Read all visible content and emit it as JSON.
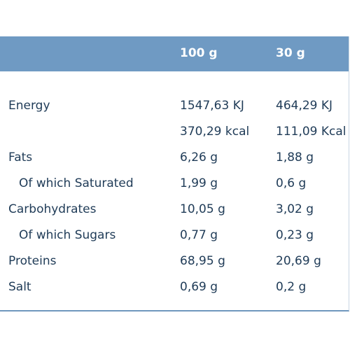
{
  "table": {
    "headers": [
      "",
      "100 g",
      "30 g"
    ],
    "rows": [
      {
        "label": "Energy",
        "v100": "1547,63 KJ",
        "v30": "464,29 KJ",
        "indent": false
      },
      {
        "label": "",
        "v100": "370,29 kcal",
        "v30": "111,09 Kcal",
        "indent": false
      },
      {
        "label": "Fats",
        "v100": "6,26 g",
        "v30": "1,88 g",
        "indent": false
      },
      {
        "label": "Of which Saturated",
        "v100": "1,99 g",
        "v30": "0,6 g",
        "indent": true
      },
      {
        "label": "Carbohydrates",
        "v100": "10,05 g",
        "v30": "3,02 g",
        "indent": false
      },
      {
        "label": "Of which Sugars",
        "v100": "0,77 g",
        "v30": "0,23 g",
        "indent": true
      },
      {
        "label": "Proteins",
        "v100": "68,95 g",
        "v30": "20,69 g",
        "indent": false
      },
      {
        "label": "Salt",
        "v100": "0,69 g",
        "v30": "0,2 g",
        "indent": false
      }
    ]
  },
  "colors": {
    "header_bg": "#6f9ac3",
    "header_text": "#ffffff",
    "body_text": "#1f3b57"
  }
}
